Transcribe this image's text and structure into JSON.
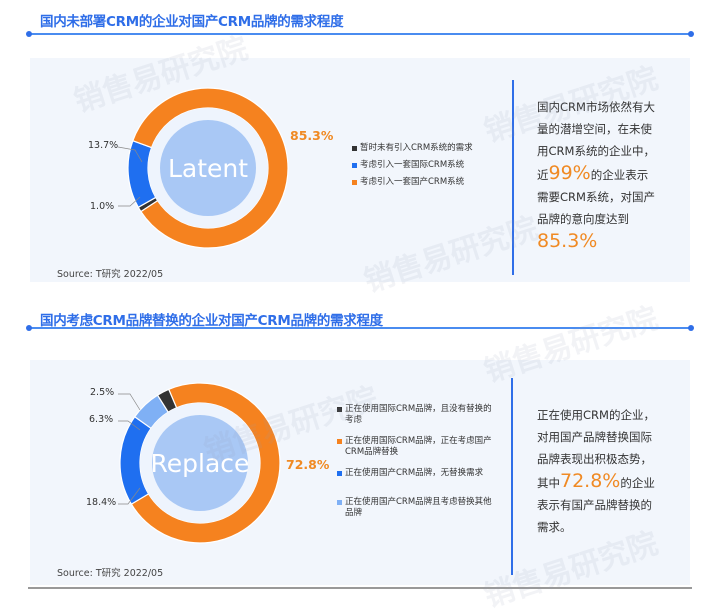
{
  "watermark": "销售易研究院",
  "colors": {
    "orange": "#f5821f",
    "blue": "#1f6ff0",
    "lightblue": "#7fb0f5",
    "dark": "#333333",
    "accent": "#2f6ee8"
  },
  "chart_data": [
    {
      "type": "pie",
      "title": "国内未部署CRM的企业对国产CRM品牌的需求程度",
      "center_text": "Latent",
      "source": "Source: T研究 2022/05",
      "categories": [
        "暂时未有引入CRM系统的需求",
        "考虑引入一套国际CRM系统",
        "考虑引入一套国产CRM系统"
      ],
      "values": [
        1.0,
        13.7,
        85.3
      ],
      "labels": [
        "1.0%",
        "13.7%",
        "85.3%"
      ],
      "colors": [
        "#333333",
        "#1f6ff0",
        "#f5821f"
      ],
      "legend": "right",
      "side_text": {
        "p1": "国内CRM市场依然有大量的潜增空间，在未使用CRM系统的企业中，",
        "p2a": "近",
        "p2b": "99%",
        "p2c": "的企业表示需要CRM系统，对国产品牌的意向度达到",
        "p3": "85.3%"
      }
    },
    {
      "type": "pie",
      "title": "国内考虑CRM品牌替换的企业对国产CRM品牌的需求程度",
      "center_text": "Replace",
      "source": "Source: T研究 2022/05",
      "categories": [
        "正在使用国际CRM品牌，且没有替换的考虑",
        "正在使用国际CRM品牌，正在考虑国产CRM品牌替换",
        "正在使用国产CRM品牌，无替换需求",
        "正在使用国产CRM品牌且考虑替换其他品牌"
      ],
      "values": [
        2.5,
        72.8,
        18.4,
        6.3
      ],
      "labels": [
        "2.5%",
        "72.8%",
        "18.4%",
        "6.3%"
      ],
      "colors": [
        "#333333",
        "#f5821f",
        "#1f6ff0",
        "#7fb0f5"
      ],
      "legend": "right",
      "side_text": {
        "p1": "正在使用CRM的企业，对用国产品牌替换国际品牌表现出积极态势，",
        "p2a": "其中",
        "p2b": "72.8%",
        "p2c": "的企业表示有国产品牌替换的需求。"
      }
    }
  ]
}
